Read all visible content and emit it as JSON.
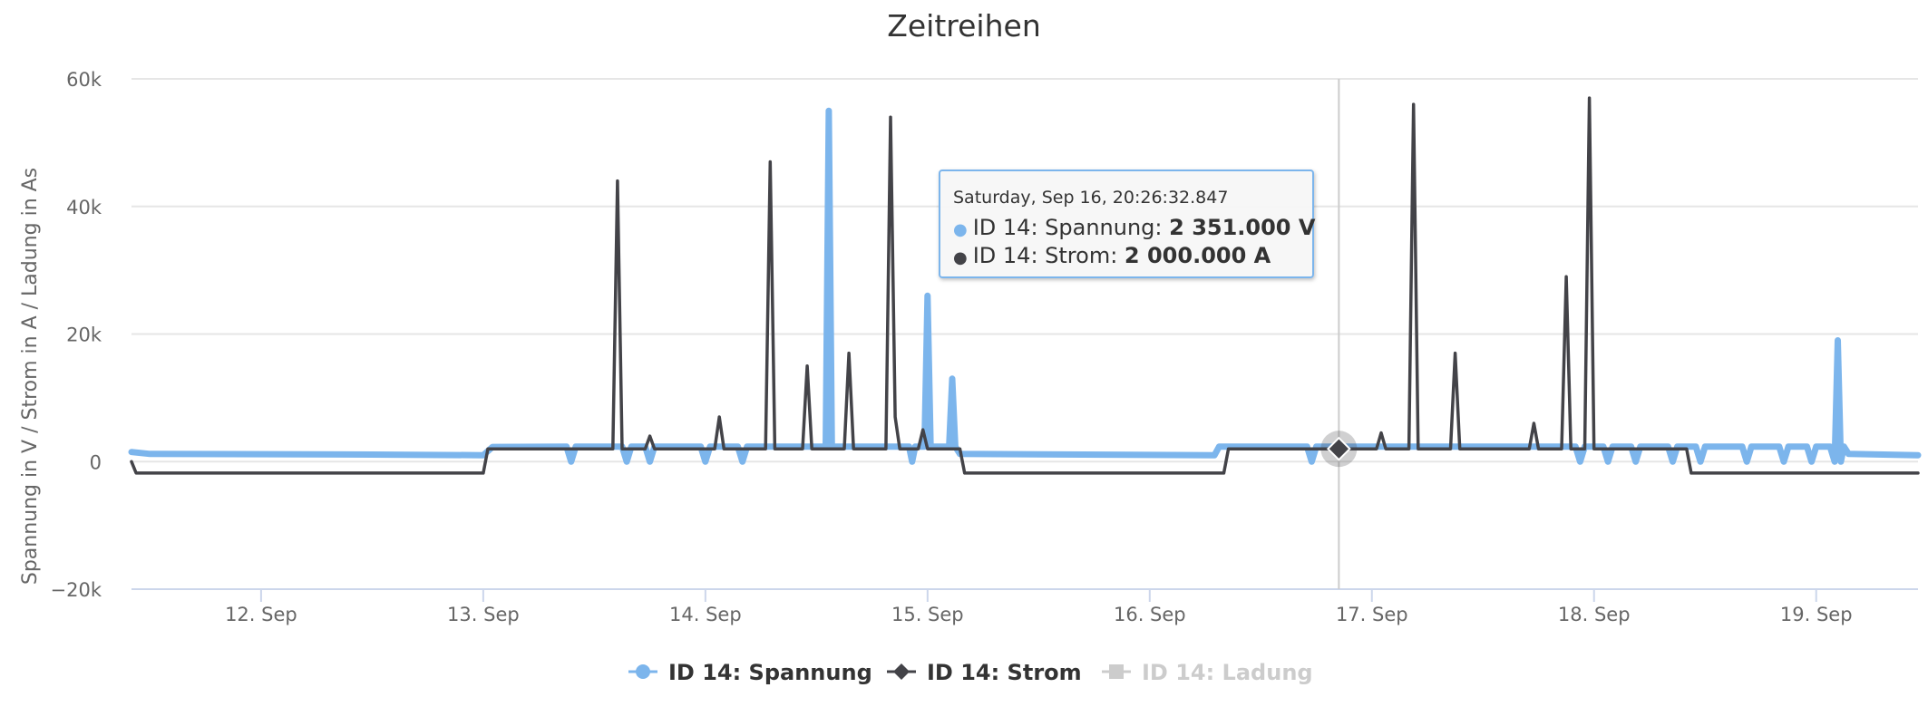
{
  "chart_data": {
    "type": "line",
    "title": "Zeitreihen",
    "ylabel": "Spannung in V / Strom in A / Ladung in As",
    "xlabel": "",
    "ylim": [
      -20000,
      60000
    ],
    "yticks": [
      -20000,
      0,
      20000,
      40000,
      60000
    ],
    "ytick_labels": [
      "−20k",
      "0",
      "20k",
      "40k",
      "60k"
    ],
    "xlim": [
      "2023-09-11 10:00",
      "2023-09-19 11:00"
    ],
    "xticks": [
      "12. Sep",
      "13. Sep",
      "14. Sep",
      "15. Sep",
      "16. Sep",
      "17. Sep",
      "18. Sep",
      "19. Sep"
    ],
    "grid": true,
    "legend_position": "bottom",
    "series": [
      {
        "name": "ID 14: Spannung",
        "color": "#7cb5ec",
        "visible": true,
        "marker": "circle",
        "points": [
          [
            "2023-09-11 10:00",
            1500
          ],
          [
            "2023-09-11 12:00",
            1200
          ],
          [
            "2023-09-12 12:00",
            1100
          ],
          [
            "2023-09-13 00:00",
            1000
          ],
          [
            "2023-09-13 01:00",
            2300
          ],
          [
            "2023-09-13 09:00",
            2350
          ],
          [
            "2023-09-13 09:30",
            0
          ],
          [
            "2023-09-13 10:00",
            2350
          ],
          [
            "2023-09-13 15:00",
            2350
          ],
          [
            "2023-09-13 15:30",
            0
          ],
          [
            "2023-09-13 16:00",
            2350
          ],
          [
            "2023-09-13 17:30",
            2350
          ],
          [
            "2023-09-13 18:00",
            0
          ],
          [
            "2023-09-13 18:30",
            2350
          ],
          [
            "2023-09-13 23:30",
            2350
          ],
          [
            "2023-09-14 00:00",
            0
          ],
          [
            "2023-09-14 00:30",
            2350
          ],
          [
            "2023-09-14 03:30",
            2350
          ],
          [
            "2023-09-14 04:00",
            0
          ],
          [
            "2023-09-14 04:30",
            2350
          ],
          [
            "2023-09-14 13:00",
            2350
          ],
          [
            "2023-09-14 13:20",
            55000
          ],
          [
            "2023-09-14 13:40",
            2350
          ],
          [
            "2023-09-14 22:00",
            2350
          ],
          [
            "2023-09-14 22:20",
            0
          ],
          [
            "2023-09-14 22:40",
            2350
          ],
          [
            "2023-09-14 23:40",
            2350
          ],
          [
            "2023-09-15 00:00",
            26000
          ],
          [
            "2023-09-15 00:20",
            2350
          ],
          [
            "2023-09-15 02:20",
            2350
          ],
          [
            "2023-09-15 02:40",
            13000
          ],
          [
            "2023-09-15 03:00",
            2350
          ],
          [
            "2023-09-15 03:30",
            1200
          ],
          [
            "2023-09-16 07:00",
            1000
          ],
          [
            "2023-09-16 07:30",
            2350
          ],
          [
            "2023-09-16 17:00",
            2350
          ],
          [
            "2023-09-16 17:30",
            0
          ],
          [
            "2023-09-16 18:00",
            2350
          ],
          [
            "2023-09-16 20:26",
            2351
          ],
          [
            "2023-09-17 22:00",
            2350
          ],
          [
            "2023-09-17 22:30",
            0
          ],
          [
            "2023-09-17 23:00",
            2350
          ],
          [
            "2023-09-18 01:00",
            2350
          ],
          [
            "2023-09-18 01:30",
            0
          ],
          [
            "2023-09-18 02:00",
            2350
          ],
          [
            "2023-09-18 04:00",
            2350
          ],
          [
            "2023-09-18 04:30",
            0
          ],
          [
            "2023-09-18 05:00",
            2350
          ],
          [
            "2023-09-18 08:00",
            2350
          ],
          [
            "2023-09-18 08:30",
            0
          ],
          [
            "2023-09-18 09:00",
            2350
          ],
          [
            "2023-09-18 11:00",
            2350
          ],
          [
            "2023-09-18 11:30",
            0
          ],
          [
            "2023-09-18 12:00",
            2350
          ],
          [
            "2023-09-18 16:00",
            2350
          ],
          [
            "2023-09-18 16:30",
            0
          ],
          [
            "2023-09-18 17:00",
            2350
          ],
          [
            "2023-09-18 20:00",
            2350
          ],
          [
            "2023-09-18 20:30",
            0
          ],
          [
            "2023-09-18 21:00",
            2350
          ],
          [
            "2023-09-18 23:00",
            2350
          ],
          [
            "2023-09-18 23:30",
            0
          ],
          [
            "2023-09-19 00:00",
            2350
          ],
          [
            "2023-09-19 01:30",
            2350
          ],
          [
            "2023-09-19 02:00",
            0
          ],
          [
            "2023-09-19 02:20",
            19000
          ],
          [
            "2023-09-19 02:40",
            0
          ],
          [
            "2023-09-19 03:00",
            2350
          ],
          [
            "2023-09-19 03:30",
            1200
          ],
          [
            "2023-09-19 11:00",
            1000
          ]
        ]
      },
      {
        "name": "ID 14: Strom",
        "color": "#434348",
        "visible": true,
        "marker": "diamond",
        "points": [
          [
            "2023-09-11 10:00",
            0
          ],
          [
            "2023-09-11 10:30",
            -1800
          ],
          [
            "2023-09-13 00:00",
            -1800
          ],
          [
            "2023-09-13 00:30",
            2000
          ],
          [
            "2023-09-13 14:00",
            2000
          ],
          [
            "2023-09-13 14:30",
            44000
          ],
          [
            "2023-09-13 15:00",
            2000
          ],
          [
            "2023-09-13 17:30",
            2000
          ],
          [
            "2023-09-13 18:00",
            4000
          ],
          [
            "2023-09-13 18:30",
            2000
          ],
          [
            "2023-09-14 01:00",
            2000
          ],
          [
            "2023-09-14 01:30",
            7000
          ],
          [
            "2023-09-14 02:00",
            2000
          ],
          [
            "2023-09-14 06:30",
            2000
          ],
          [
            "2023-09-14 07:00",
            47000
          ],
          [
            "2023-09-14 07:30",
            2000
          ],
          [
            "2023-09-14 10:30",
            2000
          ],
          [
            "2023-09-14 11:00",
            15000
          ],
          [
            "2023-09-14 11:30",
            2000
          ],
          [
            "2023-09-14 15:00",
            2000
          ],
          [
            "2023-09-14 15:30",
            17000
          ],
          [
            "2023-09-14 16:00",
            2000
          ],
          [
            "2023-09-14 19:30",
            2000
          ],
          [
            "2023-09-14 20:00",
            54000
          ],
          [
            "2023-09-14 20:30",
            7000
          ],
          [
            "2023-09-14 21:00",
            2000
          ],
          [
            "2023-09-14 23:00",
            2000
          ],
          [
            "2023-09-14 23:30",
            5000
          ],
          [
            "2023-09-15 00:00",
            2000
          ],
          [
            "2023-09-15 03:30",
            2000
          ],
          [
            "2023-09-15 04:00",
            -1800
          ],
          [
            "2023-09-16 08:00",
            -1800
          ],
          [
            "2023-09-16 08:30",
            2000
          ],
          [
            "2023-09-16 20:26",
            2000
          ],
          [
            "2023-09-17 00:30",
            2000
          ],
          [
            "2023-09-17 01:00",
            4500
          ],
          [
            "2023-09-17 01:30",
            2000
          ],
          [
            "2023-09-17 04:00",
            2000
          ],
          [
            "2023-09-17 04:30",
            56000
          ],
          [
            "2023-09-17 05:00",
            2000
          ],
          [
            "2023-09-17 08:30",
            2000
          ],
          [
            "2023-09-17 09:00",
            17000
          ],
          [
            "2023-09-17 09:30",
            2000
          ],
          [
            "2023-09-17 17:00",
            2000
          ],
          [
            "2023-09-17 17:30",
            6000
          ],
          [
            "2023-09-17 18:00",
            2000
          ],
          [
            "2023-09-17 20:30",
            2000
          ],
          [
            "2023-09-17 21:00",
            29000
          ],
          [
            "2023-09-17 21:30",
            2000
          ],
          [
            "2023-09-17 23:00",
            2000
          ],
          [
            "2023-09-17 23:30",
            57000
          ],
          [
            "2023-09-18 00:00",
            2000
          ],
          [
            "2023-09-18 10:00",
            2000
          ],
          [
            "2023-09-18 10:30",
            -1800
          ],
          [
            "2023-09-19 11:00",
            -1800
          ]
        ]
      },
      {
        "name": "ID 14: Ladung",
        "color": "#cccccc",
        "visible": false,
        "marker": "square",
        "points": []
      }
    ],
    "crosshair_x": "2023-09-16 20:26",
    "tooltip": {
      "header": "Saturday, Sep 16, 20:26:32.847",
      "rows": [
        {
          "label": "ID 14: Spannung: ",
          "value": "2 351.000 V",
          "color": "#7cb5ec"
        },
        {
          "label": "ID 14: Strom: ",
          "value": "2 000.000 A",
          "color": "#434348"
        }
      ]
    }
  }
}
